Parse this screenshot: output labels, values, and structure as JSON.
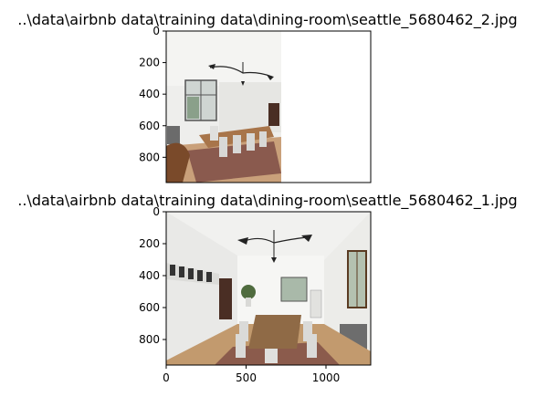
{
  "chart_data": [
    {
      "type": "image",
      "title": "..\\data\\airbnb data\\training data\\dining-room\\seattle_5680462_2.jpg",
      "xlim": [
        0,
        1280
      ],
      "ylim": [
        960,
        0
      ],
      "yticks": [
        0,
        200,
        400,
        600,
        800
      ],
      "xticks": [],
      "image_extent": {
        "x": [
          0,
          720
        ],
        "y": [
          960,
          0
        ]
      },
      "image_content": "dining room, narrow crop"
    },
    {
      "type": "image",
      "title": "..\\data\\airbnb data\\training data\\dining-room\\seattle_5680462_1.jpg",
      "xlim": [
        0,
        1280
      ],
      "ylim": [
        960,
        0
      ],
      "yticks": [
        0,
        200,
        400,
        600,
        800
      ],
      "xticks": [
        0,
        500,
        1000
      ],
      "image_extent": {
        "x": [
          0,
          1280
        ],
        "y": [
          960,
          0
        ]
      },
      "image_content": "dining room, wide view"
    }
  ]
}
